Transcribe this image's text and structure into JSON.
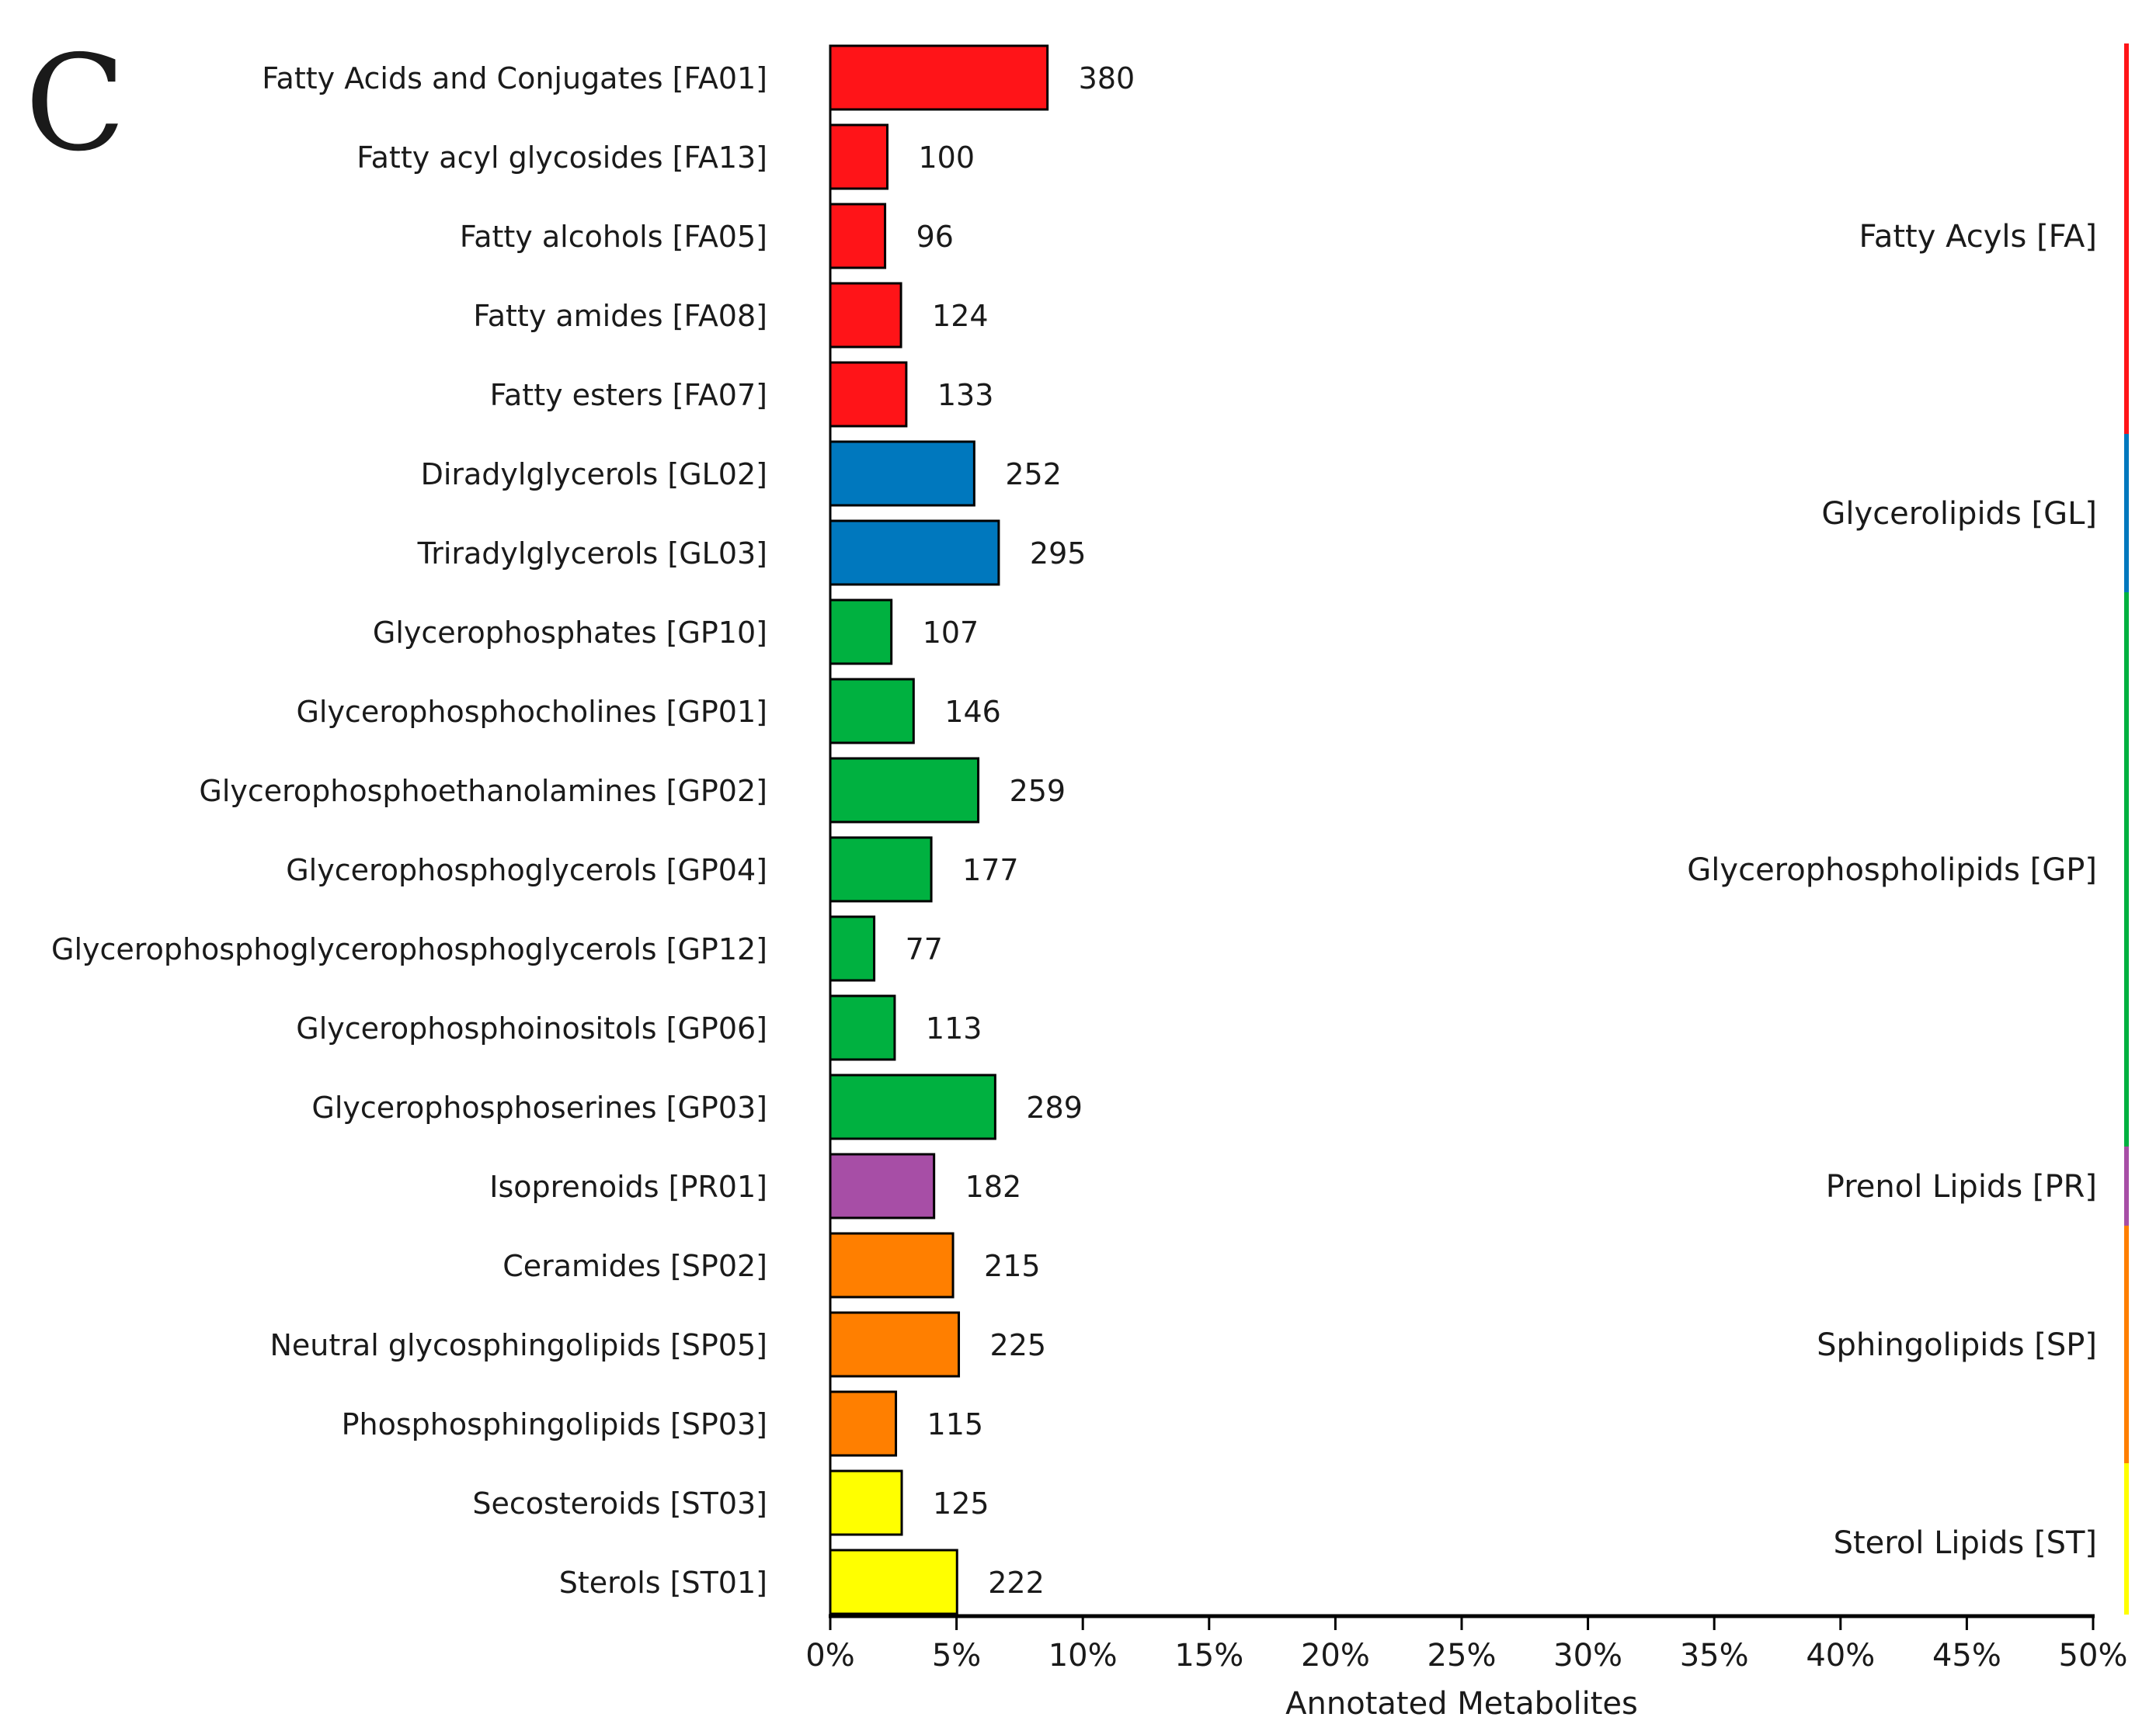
{
  "panel_label": "C",
  "colors": {
    "FA": "#ff1418",
    "GL": "#0078be",
    "GP": "#00b140",
    "PR": "#a74ea6",
    "SP": "#ff7f00",
    "ST": "#ffff00"
  },
  "chart_data": {
    "type": "bar",
    "orientation": "horizontal",
    "xlabel": "Annotated Metabolites",
    "xlim": [
      0,
      50
    ],
    "x_ticks": [
      "0%",
      "5%",
      "10%",
      "15%",
      "20%",
      "25%",
      "30%",
      "35%",
      "40%",
      "45%",
      "50%"
    ],
    "value_label_meaning": "count of annotated metabolites",
    "bar_length_meaning": "percentage of annotated metabolites",
    "categories": [
      "Fatty Acids and Conjugates [FA01]",
      "Fatty acyl glycosides [FA13]",
      "Fatty alcohols [FA05]",
      "Fatty amides [FA08]",
      "Fatty esters [FA07]",
      "Diradylglycerols [GL02]",
      "Triradylglycerols [GL03]",
      "Glycerophosphates [GP10]",
      "Glycerophosphocholines [GP01]",
      "Glycerophosphoethanolamines [GP02]",
      "Glycerophosphoglycerols [GP04]",
      "Glycerophosphoglycerophosphoglycerols [GP12]",
      "Glycerophosphoinositols [GP06]",
      "Glycerophosphoserines [GP03]",
      "Isoprenoids [PR01]",
      "Ceramides [SP02]",
      "Neutral glycosphingolipids [SP05]",
      "Phosphosphingolipids [SP03]",
      "Secosteroids [ST03]",
      "Sterols [ST01]"
    ],
    "counts": [
      "380",
      "100",
      "96",
      "124",
      "133",
      "252",
      "295",
      "107",
      "146",
      "259",
      "177",
      "77",
      "113",
      "289",
      "182",
      "215",
      "225",
      "115",
      "125",
      "222"
    ],
    "percent": [
      8.6,
      2.26,
      2.17,
      2.8,
      3.01,
      5.7,
      6.67,
      2.42,
      3.3,
      5.86,
      4.0,
      1.74,
      2.55,
      6.53,
      4.11,
      4.86,
      5.09,
      2.6,
      2.83,
      5.02
    ],
    "group_of_category": [
      "FA",
      "FA",
      "FA",
      "FA",
      "FA",
      "GL",
      "GL",
      "GP",
      "GP",
      "GP",
      "GP",
      "GP",
      "GP",
      "GP",
      "PR",
      "SP",
      "SP",
      "SP",
      "ST",
      "ST"
    ],
    "groups": [
      {
        "key": "FA",
        "label": "Fatty Acyls [FA]",
        "start": 0,
        "end": 4
      },
      {
        "key": "GL",
        "label": "Glycerolipids [GL]",
        "start": 5,
        "end": 6
      },
      {
        "key": "GP",
        "label": "Glycerophospholipids [GP]",
        "start": 7,
        "end": 13
      },
      {
        "key": "PR",
        "label": "Prenol Lipids [PR]",
        "start": 14,
        "end": 14
      },
      {
        "key": "SP",
        "label": "Sphingolipids [SP]",
        "start": 15,
        "end": 17
      },
      {
        "key": "ST",
        "label": "Sterol Lipids [ST]",
        "start": 18,
        "end": 19
      }
    ]
  }
}
